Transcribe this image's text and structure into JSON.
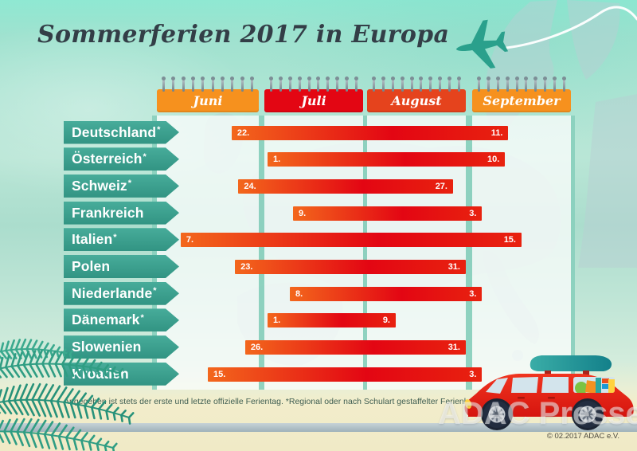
{
  "page": {
    "title": "Sommerferien 2017 in Europa",
    "footnote": "Angegeben ist stets der erste und letzte offizielle Ferientag. *Regional oder nach Schulart gestaffelter Ferienkorridor",
    "copyright": "© 02.2017 ADAC e.V.",
    "watermark": "ADAC Presse"
  },
  "colors": {
    "title_text": "#333e47",
    "country_label_teal": "#3aa392",
    "bar_gradient_left": "#f3671c",
    "bar_gradient_right": "#e30613",
    "month_orange": "#f6911e",
    "month_red": "#e30613",
    "month_red_orange": "#e5431d",
    "plane_teal": "#2aa08c",
    "sand": "#f2edcb"
  },
  "calendar": {
    "months": [
      {
        "label": "Juni",
        "days": 30,
        "color": "#f6911e"
      },
      {
        "label": "Juli",
        "days": 31,
        "color": "#e30613"
      },
      {
        "label": "August",
        "days": 31,
        "color": "#e5431d"
      },
      {
        "label": "September",
        "days": 30,
        "color": "#f6911e"
      }
    ]
  },
  "chart_data": {
    "type": "bar",
    "orientation": "horizontal-gantt",
    "title": "Sommerferien 2017 in Europa",
    "x_axis_labels": [
      "Juni",
      "Juli",
      "August",
      "September"
    ],
    "categories": [
      "Deutschland",
      "Österreich",
      "Schweiz",
      "Frankreich",
      "Italien",
      "Polen",
      "Niederlande",
      "Dänemark",
      "Slowenien",
      "Kroatien"
    ],
    "rows": [
      {
        "country": "Deutschland",
        "asterisk": true,
        "start": {
          "month": "Juni",
          "day": 22,
          "label": "22."
        },
        "end": {
          "month": "September",
          "day": 11,
          "label": "11."
        }
      },
      {
        "country": "Österreich",
        "asterisk": true,
        "start": {
          "month": "Juli",
          "day": 1,
          "label": "1."
        },
        "end": {
          "month": "September",
          "day": 10,
          "label": "10."
        }
      },
      {
        "country": "Schweiz",
        "asterisk": true,
        "start": {
          "month": "Juni",
          "day": 24,
          "label": "24."
        },
        "end": {
          "month": "August",
          "day": 27,
          "label": "27."
        }
      },
      {
        "country": "Frankreich",
        "asterisk": false,
        "start": {
          "month": "Juli",
          "day": 9,
          "label": "9."
        },
        "end": {
          "month": "September",
          "day": 3,
          "label": "3."
        }
      },
      {
        "country": "Italien",
        "asterisk": true,
        "start": {
          "month": "Juni",
          "day": 7,
          "label": "7."
        },
        "end": {
          "month": "September",
          "day": 15,
          "label": "15."
        }
      },
      {
        "country": "Polen",
        "asterisk": false,
        "start": {
          "month": "Juni",
          "day": 23,
          "label": "23."
        },
        "end": {
          "month": "August",
          "day": 31,
          "label": "31."
        }
      },
      {
        "country": "Niederlande",
        "asterisk": true,
        "start": {
          "month": "Juli",
          "day": 8,
          "label": "8."
        },
        "end": {
          "month": "September",
          "day": 3,
          "label": "3."
        }
      },
      {
        "country": "Dänemark",
        "asterisk": true,
        "start": {
          "month": "Juli",
          "day": 1,
          "label": "1."
        },
        "end": {
          "month": "August",
          "day": 9,
          "label": "9."
        }
      },
      {
        "country": "Slowenien",
        "asterisk": false,
        "start": {
          "month": "Juni",
          "day": 26,
          "label": "26."
        },
        "end": {
          "month": "August",
          "day": 31,
          "label": "31."
        }
      },
      {
        "country": "Kroatien",
        "asterisk": false,
        "start": {
          "month": "Juni",
          "day": 15,
          "label": "15."
        },
        "end": {
          "month": "September",
          "day": 3,
          "label": "3."
        }
      }
    ]
  }
}
